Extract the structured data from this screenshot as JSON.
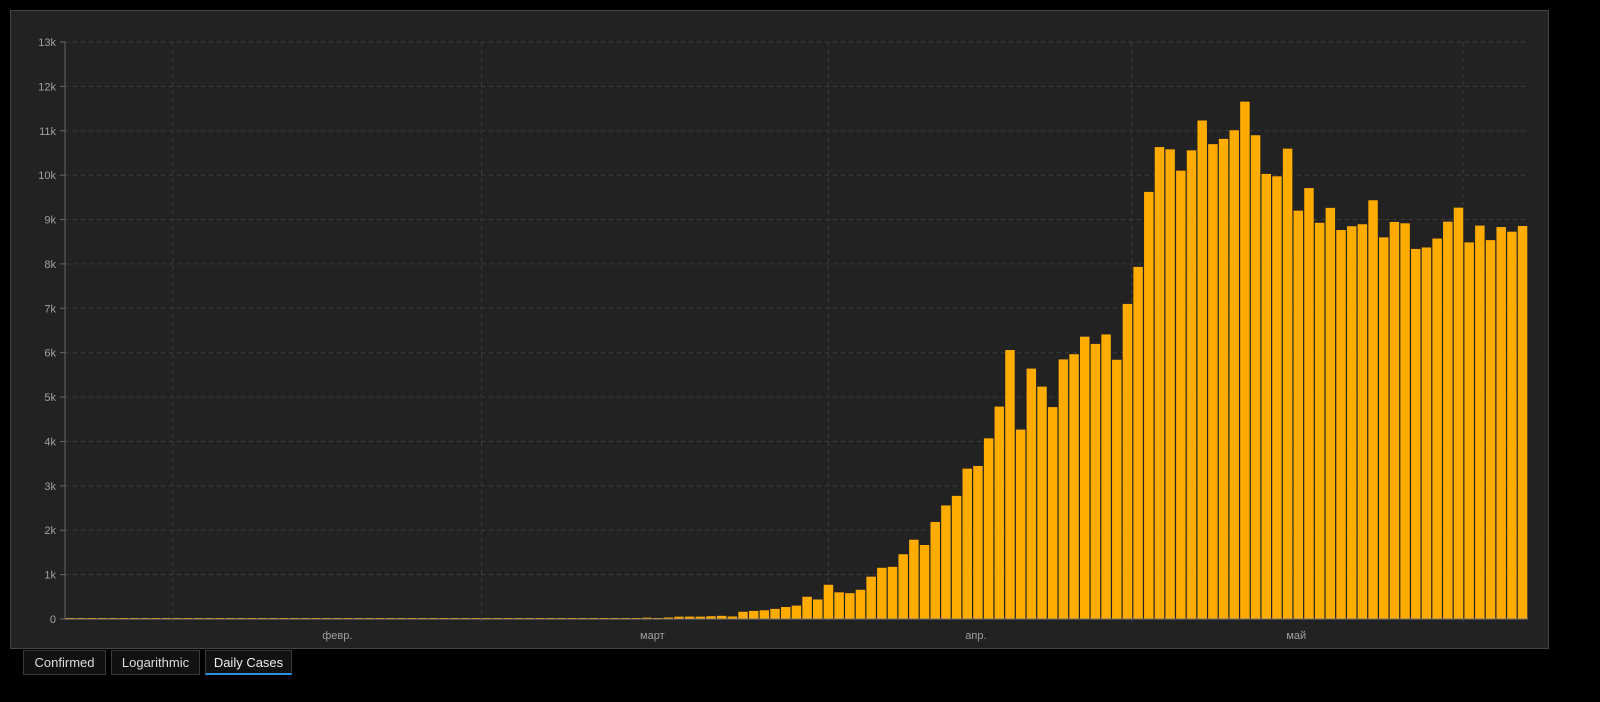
{
  "tabs": [
    {
      "label": "Confirmed",
      "active": false
    },
    {
      "label": "Logarithmic",
      "active": false
    },
    {
      "label": "Daily Cases",
      "active": true
    }
  ],
  "colors": {
    "bar": "#FFAB00",
    "background": "#222222",
    "grid": "#3c3c3c",
    "text": "#a0a0a0",
    "active_tab": "#2a8fe0"
  },
  "chart_data": {
    "type": "bar",
    "title": "",
    "xlabel": "",
    "ylabel": "",
    "ylim": [
      0,
      13000
    ],
    "grid": true,
    "y_ticks": [
      "0",
      "1k",
      "2k",
      "3k",
      "4k",
      "5k",
      "6k",
      "7k",
      "8k",
      "9k",
      "10k",
      "11k",
      "12k",
      "13k"
    ],
    "x_tick_labels": [
      "февр.",
      "март",
      "апр.",
      "май"
    ],
    "values": [
      0,
      0,
      0,
      0,
      0,
      0,
      0,
      0,
      0,
      2,
      0,
      0,
      0,
      0,
      0,
      0,
      0,
      0,
      0,
      0,
      0,
      0,
      0,
      0,
      0,
      0,
      0,
      0,
      0,
      0,
      0,
      0,
      0,
      0,
      0,
      0,
      0,
      0,
      0,
      0,
      1,
      0,
      0,
      0,
      1,
      9,
      0,
      3,
      0,
      3,
      8,
      14,
      11,
      18,
      30,
      21,
      33,
      52,
      54,
      53,
      62,
      71,
      57,
      163,
      182,
      196,
      228,
      270,
      302,
      501,
      440,
      771,
      601,
      582,
      658,
      954,
      1154,
      1175,
      1459,
      1786,
      1667,
      2186,
      2558,
      2774,
      3388,
      3448,
      4070,
      4785,
      6060,
      4268,
      5642,
      5236,
      4774,
      5849,
      5966,
      6361,
      6198,
      6411,
      5841,
      7099,
      7933,
      9623,
      10633,
      10581,
      10102,
      10559,
      11231,
      10699,
      10817,
      11012,
      11656,
      10899,
      10028,
      9974,
      10598,
      9200,
      9709,
      8926,
      9263,
      8764,
      8849,
      8894,
      9434,
      8599,
      8946,
      8915,
      8338,
      8371,
      8572,
      8952,
      9268,
      8485,
      8863,
      8536,
      8831,
      8726,
      8855
    ]
  }
}
